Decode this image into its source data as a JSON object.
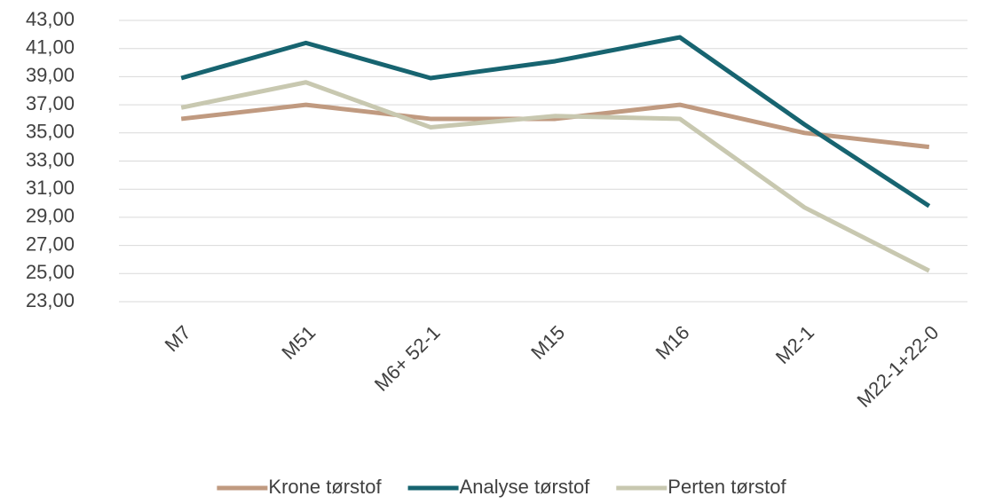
{
  "chart_data": {
    "type": "line",
    "categories": [
      "M7",
      "M51",
      "M6+ 52-1",
      "M15",
      "M16",
      "M2-1",
      "M22-1+22-0"
    ],
    "series": [
      {
        "name": "Krone tørstof",
        "color": "#c09a80",
        "values": [
          36.0,
          37.0,
          36.0,
          36.0,
          37.0,
          35.0,
          34.0
        ]
      },
      {
        "name": "Analyse tørstof",
        "color": "#176470",
        "values": [
          38.9,
          41.4,
          38.9,
          40.1,
          41.8,
          35.6,
          29.8
        ]
      },
      {
        "name": "Perten tørstof",
        "color": "#c8c8b0",
        "values": [
          36.8,
          38.6,
          35.4,
          36.2,
          36.0,
          29.7,
          25.2
        ]
      }
    ],
    "ylim": [
      23,
      43
    ],
    "yticks": [
      {
        "value": 23,
        "label": "23,00"
      },
      {
        "value": 25,
        "label": "25,00"
      },
      {
        "value": 27,
        "label": "27,00"
      },
      {
        "value": 29,
        "label": "29,00"
      },
      {
        "value": 31,
        "label": "31,00"
      },
      {
        "value": 33,
        "label": "33,00"
      },
      {
        "value": 35,
        "label": "35,00"
      },
      {
        "value": 37,
        "label": "37,00"
      },
      {
        "value": 39,
        "label": "39,00"
      },
      {
        "value": 41,
        "label": "41,00"
      },
      {
        "value": 43,
        "label": "43,00"
      }
    ],
    "grid": true,
    "legend": "bottom"
  }
}
